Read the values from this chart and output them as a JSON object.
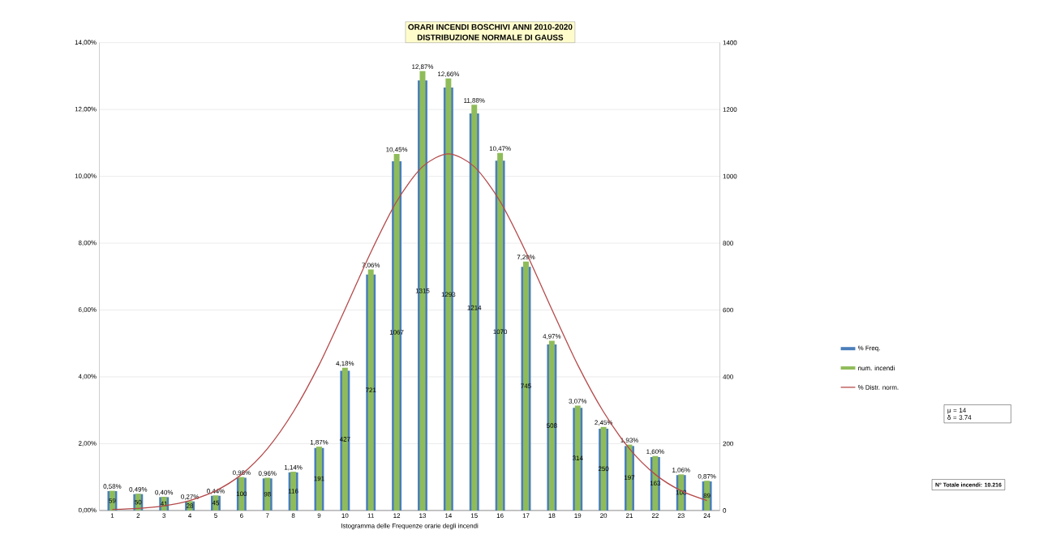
{
  "chart_data": {
    "type": "bar",
    "title": "ORARI INCENDI BOSCHIVI ANNI 2010-2020",
    "subtitle": "DISTRIBUZIONE NORMALE DI GAUSS",
    "xlabel": "Istogramma delle Frequenze orarie degli incendi",
    "categories": [
      "1",
      "2",
      "3",
      "4",
      "5",
      "6",
      "7",
      "8",
      "9",
      "10",
      "11",
      "12",
      "13",
      "14",
      "15",
      "16",
      "17",
      "18",
      "19",
      "20",
      "21",
      "22",
      "23",
      "24"
    ],
    "series": [
      {
        "name": "% Freq.",
        "type": "bar",
        "color": "#4a7ebb",
        "values": [
          0.58,
          0.49,
          0.4,
          0.27,
          0.44,
          0.98,
          0.96,
          1.14,
          1.87,
          4.18,
          7.06,
          10.45,
          12.87,
          12.66,
          11.88,
          10.47,
          7.29,
          4.97,
          3.07,
          2.45,
          1.93,
          1.6,
          1.06,
          0.87
        ],
        "value_labels": [
          "0,58%",
          "0,49%",
          "0,40%",
          "0,27%",
          "0,44%",
          "0,98%",
          "0,96%",
          "1,14%",
          "1,87%",
          "4,18%",
          "7,06%",
          "10,45%",
          "12,87%",
          "12,66%",
          "11,88%",
          "10,47%",
          "7,29%",
          "4,97%",
          "3,07%",
          "2,45%",
          "1,93%",
          "1,60%",
          "1,06%",
          "0,87%"
        ]
      },
      {
        "name": "num. incendi",
        "type": "bar",
        "axis": "y2",
        "color": "#8fbc5a",
        "values": [
          59,
          50,
          41,
          28,
          45,
          100,
          98,
          116,
          191,
          427,
          721,
          1067,
          1315,
          1293,
          1214,
          1070,
          745,
          508,
          314,
          250,
          197,
          163,
          108,
          89
        ],
        "value_labels": [
          "59",
          "50",
          "41",
          "28",
          "45",
          "100",
          "98",
          "116",
          "191",
          "427",
          "721",
          "1067",
          "1315",
          "1293",
          "1214",
          "1070",
          "745",
          "508",
          "314",
          "250",
          "197",
          "163",
          "108",
          "89"
        ]
      },
      {
        "name": "% Distr. norm.",
        "type": "line",
        "color": "#b5494a",
        "values": [
          0.03,
          0.06,
          0.14,
          0.3,
          0.59,
          1.08,
          1.85,
          2.95,
          4.36,
          6.02,
          7.73,
          9.25,
          10.29,
          10.67,
          10.29,
          9.25,
          7.73,
          6.02,
          4.36,
          2.95,
          1.85,
          1.08,
          0.59,
          0.3
        ]
      }
    ],
    "ylim": [
      0,
      14
    ],
    "yticks": [
      {
        "value": 0,
        "label": "0,00%"
      },
      {
        "value": 2,
        "label": "2,00%"
      },
      {
        "value": 4,
        "label": "4,00%"
      },
      {
        "value": 6,
        "label": "6,00%"
      },
      {
        "value": 8,
        "label": "8,00%"
      },
      {
        "value": 10,
        "label": "10,00%"
      },
      {
        "value": 12,
        "label": "12,00%"
      },
      {
        "value": 14,
        "label": "14,00%"
      }
    ],
    "y2lim": [
      0,
      1400
    ],
    "y2ticks": [
      0,
      200,
      400,
      600,
      800,
      1000,
      1200,
      1400
    ],
    "grid": "y",
    "legend": "right",
    "annotations": [
      "μ = 14",
      "δ = 3.74",
      "N° Totale incendi: 10.216"
    ]
  }
}
